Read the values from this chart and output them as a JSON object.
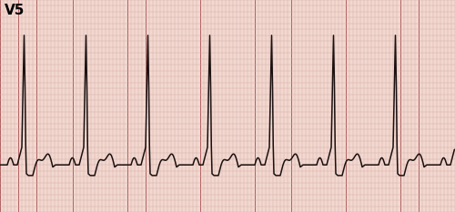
{
  "label": "V5",
  "label_fontsize": 11,
  "label_fontweight": "bold",
  "bg_color": "#f2d8d0",
  "grid_minor_color": "#d4a8a0",
  "grid_major_color": "#b06060",
  "ecg_color": "#1a1010",
  "ecg_linewidth": 1.1,
  "figsize": [
    5.0,
    2.33
  ],
  "dpi": 100,
  "rr_interval": 0.68,
  "num_beats": 8
}
